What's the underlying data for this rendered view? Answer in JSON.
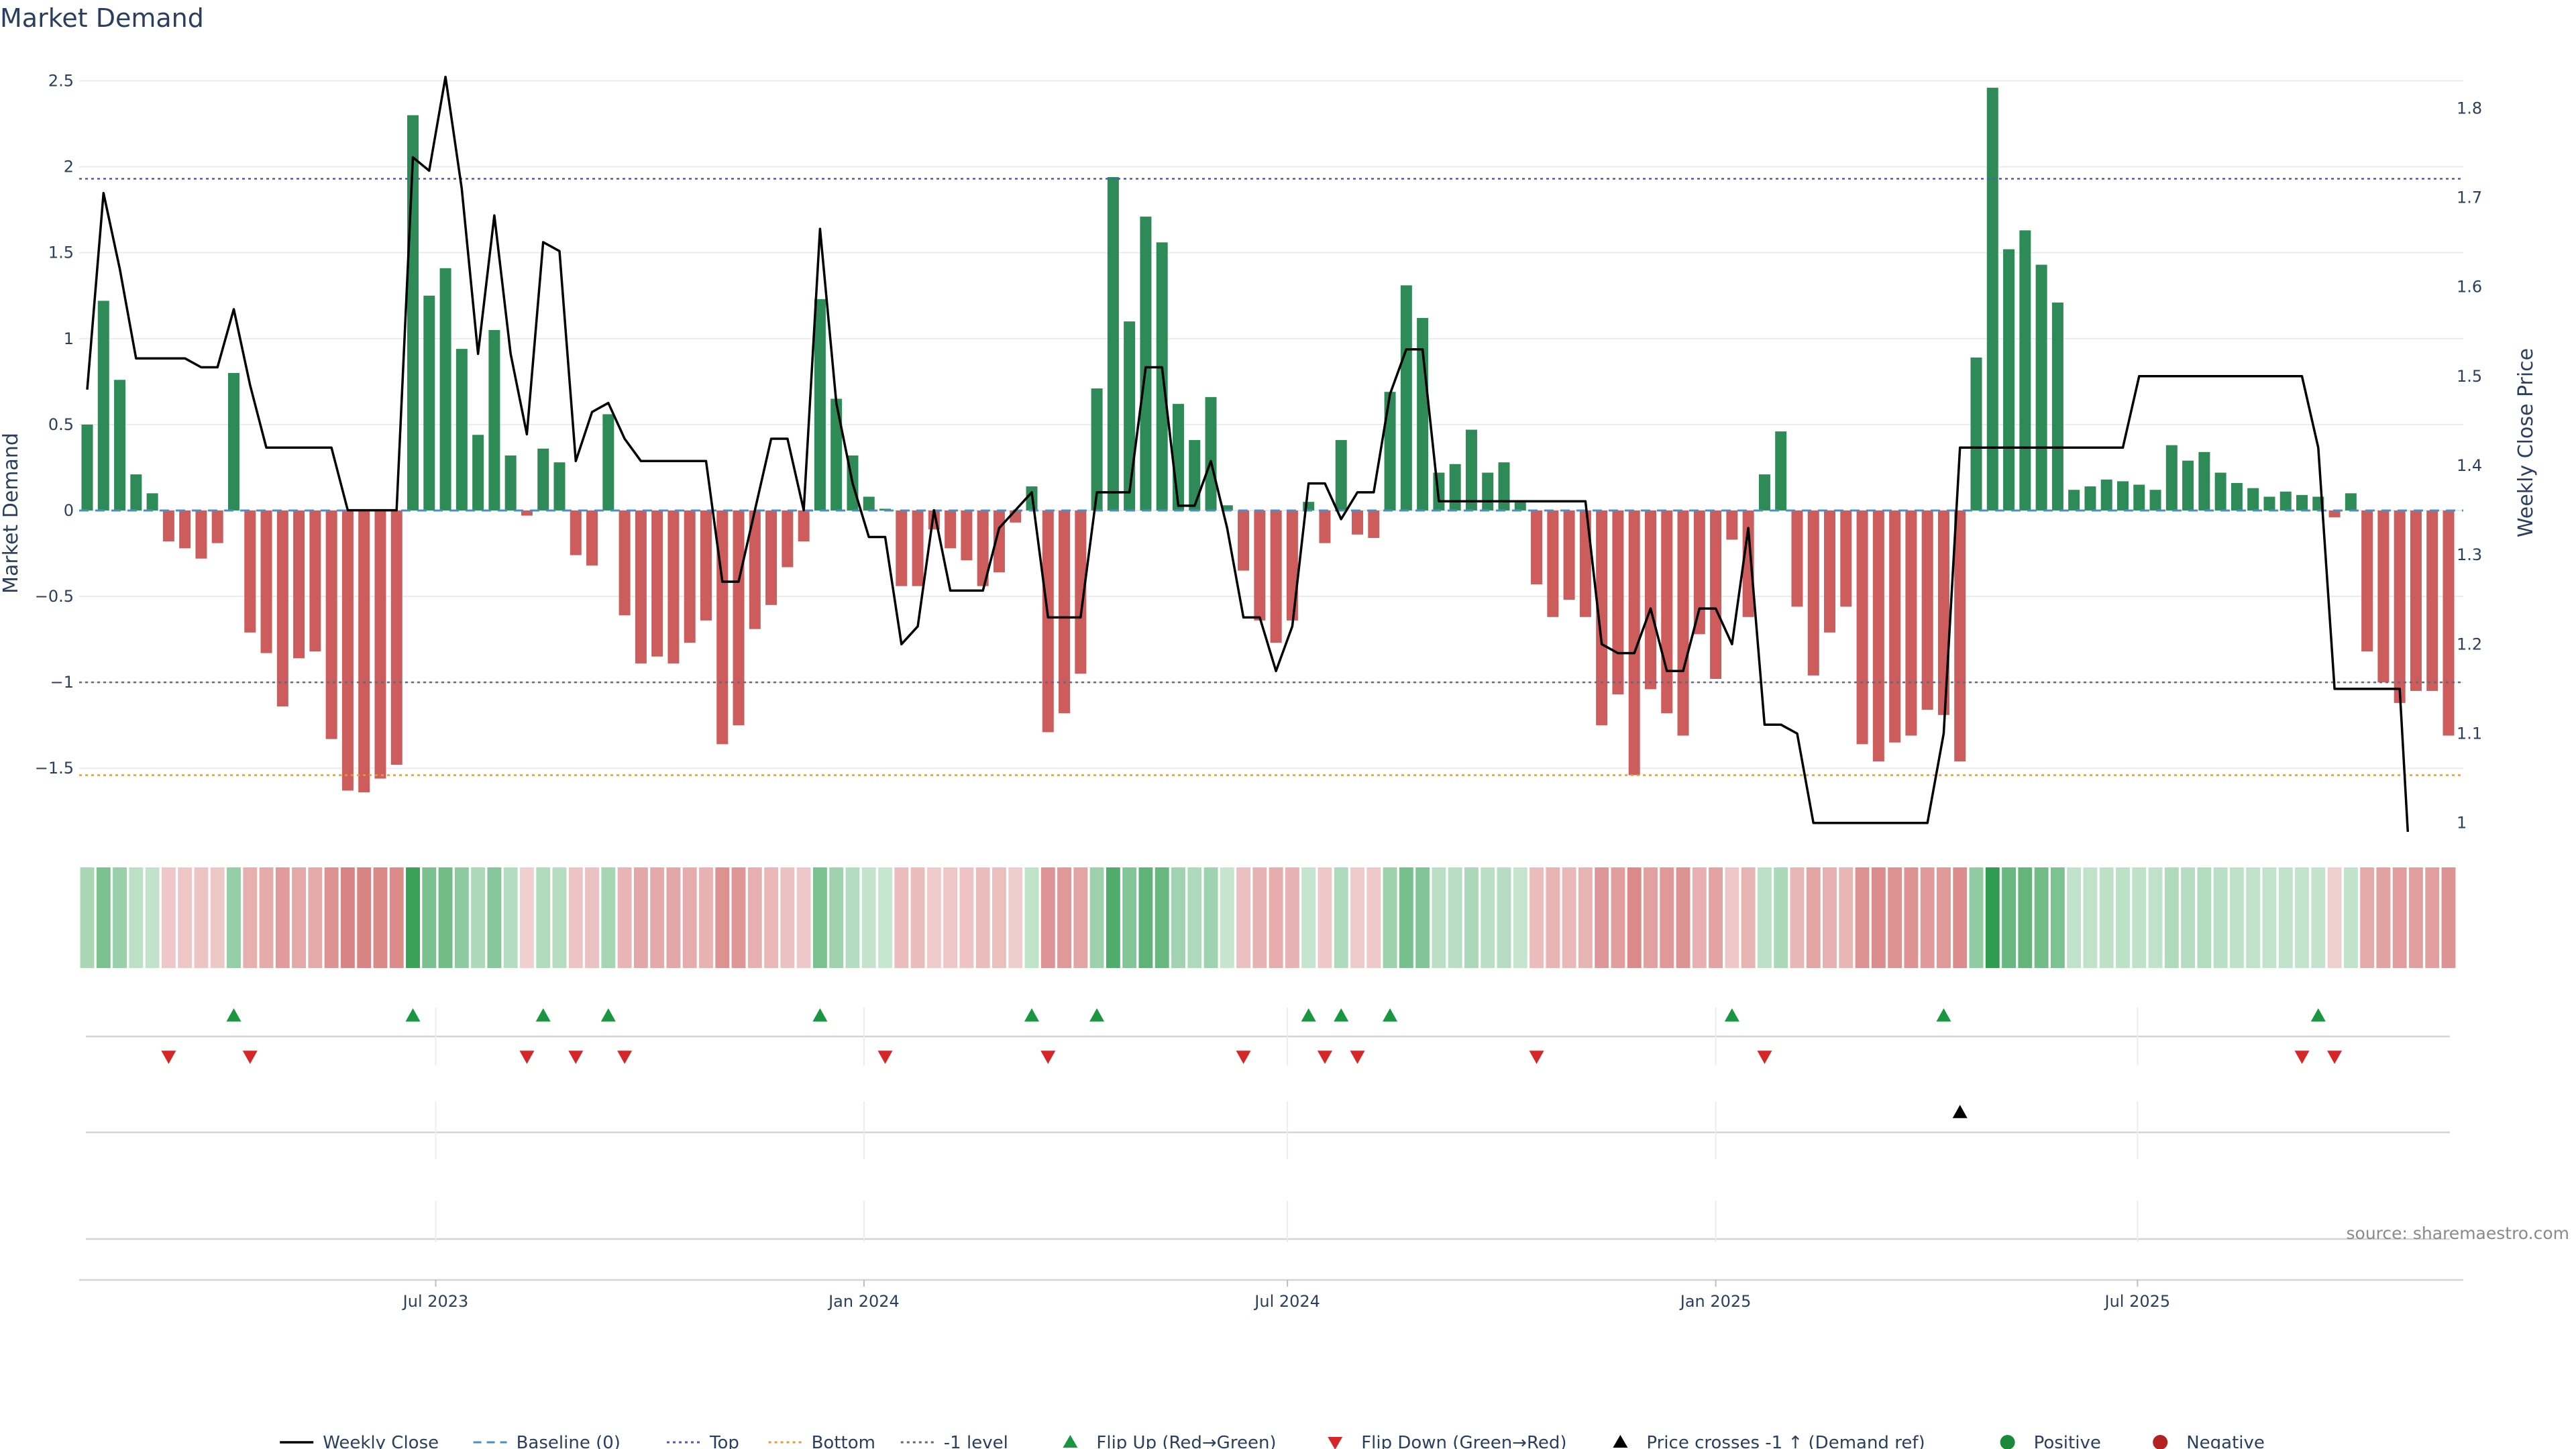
{
  "chart_data": {
    "type": "bar",
    "title": "Market Demand",
    "ylabel": "Market Demand",
    "y2label": "Weekly Close Price",
    "source": "source: sharemaestro.com",
    "ylim": [
      -1.87,
      2.58
    ],
    "y2lim": [
      0.99,
      1.846
    ],
    "yticks": [
      2.5,
      2,
      1.5,
      1,
      0.5,
      0,
      -0.5,
      -1,
      -1.5
    ],
    "ytick_labels": [
      "2.5",
      "2",
      "1.5",
      "1",
      "0.5",
      "0",
      "−0.5",
      "−1",
      "−1.5"
    ],
    "y2ticks": [
      1.8,
      1.7,
      1.6,
      1.5,
      1.4,
      1.3,
      1.2,
      1.1,
      1
    ],
    "y2tick_labels": [
      "1.8",
      "1.7",
      "1.6",
      "1.5",
      "1.4",
      "1.3",
      "1.2",
      "1.1",
      "1"
    ],
    "x_tick_labels": [
      "Jul 2023",
      "Jan 2024",
      "Jul 2024",
      "Jan 2025",
      "Jul 2025"
    ],
    "x_tick_weeks": [
      21.4,
      47.7,
      73.7,
      100.0,
      125.9
    ],
    "reference_lines": [
      {
        "name": "Baseline (0)",
        "y": 0,
        "color": "#4a90c8",
        "style": "dash"
      },
      {
        "name": "Top",
        "y": 1.93,
        "color": "#5555bb",
        "style": "dot"
      },
      {
        "name": "Bottom",
        "y": -1.54,
        "color": "#e69a3a",
        "style": "dot"
      },
      {
        "name": "-1 level",
        "y": -1.0,
        "color": "#666677",
        "style": "dot"
      }
    ],
    "colors": {
      "positive": "#2e8b57",
      "negative": "#cd5c5c",
      "price": "#000000",
      "up_marker": "#1a9641",
      "down_marker": "#d62728",
      "cross_marker": "#000000"
    },
    "demand": [
      0.5,
      1.22,
      0.76,
      0.21,
      0.1,
      -0.18,
      -0.22,
      -0.28,
      -0.19,
      0.8,
      -0.71,
      -0.83,
      -1.14,
      -0.86,
      -0.82,
      -1.33,
      -1.63,
      -1.64,
      -1.56,
      -1.48,
      2.3,
      1.25,
      1.41,
      0.94,
      0.44,
      1.05,
      0.32,
      -0.03,
      0.36,
      0.28,
      -0.26,
      -0.32,
      0.56,
      -0.61,
      -0.89,
      -0.85,
      -0.89,
      -0.77,
      -0.64,
      -1.36,
      -1.25,
      -0.69,
      -0.55,
      -0.33,
      -0.18,
      1.23,
      0.65,
      0.32,
      0.08,
      0.01,
      -0.44,
      -0.44,
      -0.11,
      -0.22,
      -0.29,
      -0.44,
      -0.36,
      -0.07,
      0.14,
      -1.29,
      -1.18,
      -0.95,
      0.71,
      1.94,
      1.1,
      1.71,
      1.56,
      0.62,
      0.41,
      0.66,
      0.03,
      -0.35,
      -0.64,
      -0.77,
      -0.64,
      0.05,
      -0.19,
      0.41,
      -0.14,
      -0.16,
      0.69,
      1.31,
      1.12,
      0.22,
      0.27,
      0.47,
      0.22,
      0.28,
      0.05,
      -0.43,
      -0.62,
      -0.52,
      -0.62,
      -1.25,
      -1.07,
      -1.54,
      -1.04,
      -1.18,
      -1.31,
      -0.72,
      -0.98,
      -0.17,
      -0.62,
      0.21,
      0.46,
      -0.56,
      -0.96,
      -0.71,
      -0.56,
      -1.36,
      -1.46,
      -1.35,
      -1.31,
      -1.16,
      -1.19,
      -1.46,
      0.89,
      2.46,
      1.52,
      1.63,
      1.43,
      1.21,
      0.12,
      0.14,
      0.18,
      0.17,
      0.15,
      0.12,
      0.38,
      0.29,
      0.34,
      0.22,
      0.16,
      0.13,
      0.08,
      0.11,
      0.09,
      0.08,
      -0.04,
      0.1,
      -0.82,
      -1.0,
      -1.12,
      -1.05,
      -1.05,
      -1.31
    ],
    "price": [
      [
        0.0,
        1.485
      ],
      [
        1.0,
        1.705
      ],
      [
        2.0,
        1.62
      ],
      [
        3.0,
        1.52
      ],
      [
        4.0,
        1.52
      ],
      [
        5.0,
        1.52
      ],
      [
        6.0,
        1.52
      ],
      [
        7.0,
        1.51
      ],
      [
        8.0,
        1.51
      ],
      [
        9.0,
        1.575
      ],
      [
        10.0,
        1.49
      ],
      [
        11.0,
        1.42
      ],
      [
        12.0,
        1.42
      ],
      [
        13.0,
        1.42
      ],
      [
        14.0,
        1.42
      ],
      [
        15.0,
        1.42
      ],
      [
        16.0,
        1.35
      ],
      [
        17.0,
        1.35
      ],
      [
        18.0,
        1.35
      ],
      [
        19.0,
        1.35
      ],
      [
        20.0,
        1.745
      ],
      [
        21.0,
        1.73
      ],
      [
        22.0,
        1.835
      ],
      [
        23.0,
        1.71
      ],
      [
        24.0,
        1.525
      ],
      [
        25.0,
        1.68
      ],
      [
        26.0,
        1.525
      ],
      [
        27.0,
        1.435
      ],
      [
        28.0,
        1.65
      ],
      [
        29.0,
        1.64
      ],
      [
        30.0,
        1.405
      ],
      [
        31.0,
        1.46
      ],
      [
        32.0,
        1.47
      ],
      [
        33.0,
        1.43
      ],
      [
        34.0,
        1.405
      ],
      [
        35.0,
        1.405
      ],
      [
        36.0,
        1.405
      ],
      [
        37.0,
        1.405
      ],
      [
        38.0,
        1.405
      ],
      [
        39.0,
        1.27
      ],
      [
        40.0,
        1.27
      ],
      [
        41.0,
        1.35
      ],
      [
        42.0,
        1.43
      ],
      [
        43.0,
        1.43
      ],
      [
        44.0,
        1.35
      ],
      [
        45.0,
        1.665
      ],
      [
        46.0,
        1.47
      ],
      [
        47.0,
        1.38
      ],
      [
        48.0,
        1.32
      ],
      [
        49.0,
        1.32
      ],
      [
        50.0,
        1.2
      ],
      [
        51.0,
        1.22
      ],
      [
        52.0,
        1.35
      ],
      [
        53.0,
        1.26
      ],
      [
        54.0,
        1.26
      ],
      [
        55.0,
        1.26
      ],
      [
        56.0,
        1.33
      ],
      [
        57.0,
        1.35
      ],
      [
        58.0,
        1.37
      ],
      [
        59.0,
        1.23
      ],
      [
        60.0,
        1.23
      ],
      [
        61.0,
        1.23
      ],
      [
        62.0,
        1.37
      ],
      [
        63.0,
        1.37
      ],
      [
        64.0,
        1.37
      ],
      [
        65.0,
        1.51
      ],
      [
        66.0,
        1.51
      ],
      [
        67.0,
        1.355
      ],
      [
        68.0,
        1.355
      ],
      [
        69.0,
        1.405
      ],
      [
        70.0,
        1.33
      ],
      [
        71.0,
        1.23
      ],
      [
        72.0,
        1.23
      ],
      [
        73.0,
        1.17
      ],
      [
        74.0,
        1.22
      ],
      [
        75.0,
        1.38
      ],
      [
        76.0,
        1.38
      ],
      [
        77.0,
        1.34
      ],
      [
        78.0,
        1.37
      ],
      [
        79.0,
        1.37
      ],
      [
        80.0,
        1.48
      ],
      [
        81.0,
        1.53
      ],
      [
        82.0,
        1.53
      ],
      [
        83.0,
        1.36
      ],
      [
        84.0,
        1.36
      ],
      [
        85.0,
        1.36
      ],
      [
        86.0,
        1.36
      ],
      [
        87.0,
        1.36
      ],
      [
        88.0,
        1.36
      ],
      [
        89.0,
        1.36
      ],
      [
        90.0,
        1.36
      ],
      [
        91.0,
        1.36
      ],
      [
        92.0,
        1.36
      ],
      [
        93.0,
        1.2
      ],
      [
        94.0,
        1.19
      ],
      [
        95.0,
        1.19
      ],
      [
        96.0,
        1.24
      ],
      [
        97.0,
        1.17
      ],
      [
        98.0,
        1.17
      ],
      [
        99.0,
        1.24
      ],
      [
        100.0,
        1.24
      ],
      [
        101.0,
        1.2
      ],
      [
        102.0,
        1.33
      ],
      [
        103.0,
        1.11
      ],
      [
        104.0,
        1.11
      ],
      [
        105.0,
        1.1
      ],
      [
        106.0,
        1.0
      ],
      [
        107.0,
        1.0
      ],
      [
        108.0,
        1.0
      ],
      [
        109.0,
        1.0
      ],
      [
        110.0,
        1.0
      ],
      [
        111.0,
        1.0
      ],
      [
        112.0,
        1.0
      ],
      [
        113.0,
        1.0
      ],
      [
        114.0,
        1.1
      ],
      [
        115.0,
        1.42
      ],
      [
        116.0,
        1.42
      ],
      [
        117.0,
        1.42
      ],
      [
        118.0,
        1.42
      ],
      [
        119.0,
        1.42
      ],
      [
        120.0,
        1.42
      ],
      [
        121.0,
        1.42
      ],
      [
        122.0,
        1.42
      ],
      [
        123.0,
        1.42
      ],
      [
        124.0,
        1.42
      ],
      [
        125.0,
        1.42
      ],
      [
        126.0,
        1.5
      ],
      [
        127.0,
        1.5
      ],
      [
        128.0,
        1.5
      ],
      [
        129.0,
        1.5
      ],
      [
        130.0,
        1.5
      ],
      [
        131.0,
        1.5
      ],
      [
        132.0,
        1.5
      ],
      [
        133.0,
        1.5
      ],
      [
        134.0,
        1.5
      ],
      [
        135.0,
        1.5
      ],
      [
        136.0,
        1.5
      ],
      [
        137.0,
        1.42
      ],
      [
        138.0,
        1.15
      ],
      [
        139.0,
        1.15
      ],
      [
        140.0,
        1.15
      ],
      [
        141.0,
        1.15
      ],
      [
        142.0,
        1.15
      ],
      [
        142.5,
        0.99
      ]
    ],
    "flip_up_weeks": [
      9,
      20,
      28,
      32,
      45,
      58,
      62,
      75,
      77,
      80,
      101,
      114,
      137
    ],
    "flip_down_weeks": [
      5,
      10,
      27,
      30,
      33,
      49,
      59,
      71,
      76,
      78,
      89,
      103,
      136,
      138
    ],
    "cross_up_weeks": [
      115
    ],
    "legend": [
      {
        "label": "Weekly Close",
        "symbol": "line",
        "color": "#000000"
      },
      {
        "label": "Baseline (0)",
        "symbol": "dash",
        "color": "#4a90c8"
      },
      {
        "label": "Top",
        "symbol": "dot",
        "color": "#5555bb"
      },
      {
        "label": "Bottom",
        "symbol": "dot",
        "color": "#e69a3a"
      },
      {
        "label": "-1 level",
        "symbol": "dot",
        "color": "#666677"
      },
      {
        "label": "Flip Up (Red→Green)",
        "symbol": "tri-up",
        "color": "#1a9641"
      },
      {
        "label": "Flip Down (Green→Red)",
        "symbol": "tri-down",
        "color": "#d62728"
      },
      {
        "label": "Price crosses -1 ↑ (Demand ref)",
        "symbol": "tri-up",
        "color": "#000000"
      },
      {
        "label": "Positive",
        "symbol": "circle",
        "color": "#1a8a3a"
      },
      {
        "label": "Negative",
        "symbol": "circle",
        "color": "#b22222"
      }
    ]
  }
}
